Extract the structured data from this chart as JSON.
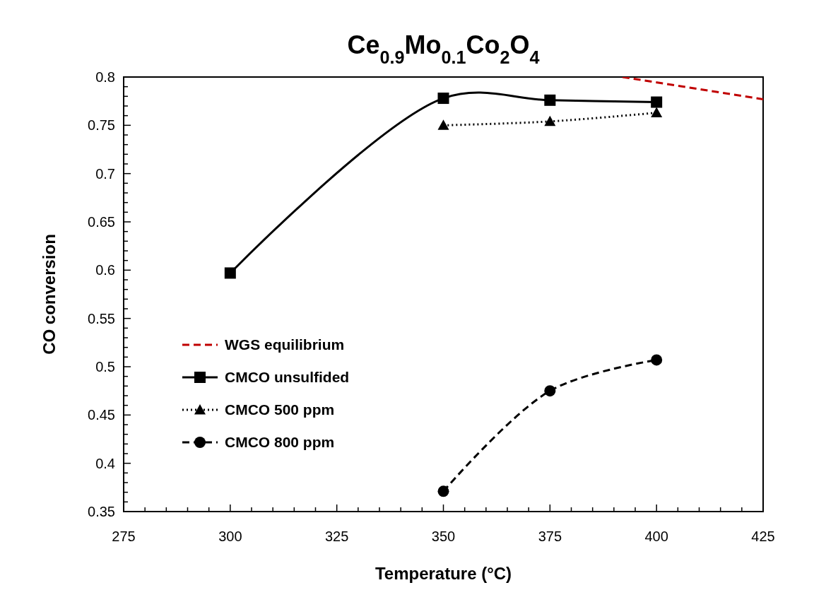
{
  "chart_data": {
    "type": "line",
    "title": "Ce$_{0.9}$Mo$_{0.1}$Co$_{2}$O$_{4}$",
    "xlabel": "Temperature (°C)",
    "ylabel": "CO conversion",
    "xlim": [
      275,
      425
    ],
    "ylim": [
      0.35,
      0.8
    ],
    "xticks": [
      275,
      {
        "value": 280,
        "label": null
      },
      {
        "value": 285,
        "label": null
      },
      {
        "value": 290,
        "label": null
      },
      {
        "value": 295,
        "label": null
      },
      300,
      {
        "value": 305,
        "label": null
      },
      {
        "value": 310,
        "label": null
      },
      {
        "value": 315,
        "label": null
      },
      {
        "value": 320,
        "label": null
      },
      325,
      {
        "value": 330,
        "label": null
      },
      {
        "value": 335,
        "label": null
      },
      {
        "value": 340,
        "label": null
      },
      {
        "value": 345,
        "label": null
      },
      350,
      {
        "value": 355,
        "label": null
      },
      {
        "value": 360,
        "label": null
      },
      {
        "value": 365,
        "label": null
      },
      {
        "value": 370,
        "label": null
      },
      375,
      {
        "value": 380,
        "label": null
      },
      {
        "value": 385,
        "label": null
      },
      {
        "value": 390,
        "label": null
      },
      {
        "value": 395,
        "label": null
      },
      400,
      {
        "value": 405,
        "label": null
      },
      {
        "value": 410,
        "label": null
      },
      {
        "value": 415,
        "label": null
      },
      {
        "value": 420,
        "label": null
      },
      425
    ],
    "yticks": [
      0.35,
      {
        "value": 0.36,
        "label": null
      },
      {
        "value": 0.37,
        "label": null
      },
      {
        "value": 0.38,
        "label": null
      },
      {
        "value": 0.39,
        "label": null
      },
      0.4,
      {
        "value": 0.41,
        "label": null
      },
      {
        "value": 0.42,
        "label": null
      },
      {
        "value": 0.43,
        "label": null
      },
      {
        "value": 0.44,
        "label": null
      },
      0.45,
      {
        "value": 0.46,
        "label": null
      },
      {
        "value": 0.47,
        "label": null
      },
      {
        "value": 0.48,
        "label": null
      },
      {
        "value": 0.49,
        "label": null
      },
      0.5,
      {
        "value": 0.51,
        "label": null
      },
      {
        "value": 0.52,
        "label": null
      },
      {
        "value": 0.53,
        "label": null
      },
      {
        "value": 0.54,
        "label": null
      },
      0.55,
      {
        "value": 0.56,
        "label": null
      },
      {
        "value": 0.57,
        "label": null
      },
      {
        "value": 0.58,
        "label": null
      },
      {
        "value": 0.59,
        "label": null
      },
      0.6,
      {
        "value": 0.61,
        "label": null
      },
      {
        "value": 0.62,
        "label": null
      },
      {
        "value": 0.63,
        "label": null
      },
      {
        "value": 0.64,
        "label": null
      },
      0.65,
      {
        "value": 0.66,
        "label": null
      },
      {
        "value": 0.67,
        "label": null
      },
      {
        "value": 0.68,
        "label": null
      },
      {
        "value": 0.69,
        "label": null
      },
      0.7,
      {
        "value": 0.71,
        "label": null
      },
      {
        "value": 0.72,
        "label": null
      },
      {
        "value": 0.73,
        "label": null
      },
      {
        "value": 0.74,
        "label": null
      },
      0.75,
      {
        "value": 0.76,
        "label": null
      },
      {
        "value": 0.77,
        "label": null
      },
      {
        "value": 0.78,
        "label": null
      },
      {
        "value": 0.79,
        "label": null
      },
      0.8
    ],
    "grid": false,
    "legend": "left",
    "series": [
      {
        "name": "WGS equilibrium",
        "color": "#c00000",
        "x": [
          392,
          425
        ],
        "values": [
          0.8,
          0.777
        ],
        "marker": "none",
        "line_style": "dashed"
      },
      {
        "name": "CMCO unsulfided",
        "color": "#000000",
        "x": [
          300,
          350,
          375,
          400
        ],
        "values": [
          0.597,
          0.778,
          0.776,
          0.774
        ],
        "marker": "square",
        "line_style": "solid"
      },
      {
        "name": "CMCO 500 ppm",
        "color": "#000000",
        "x": [
          350,
          375,
          400
        ],
        "values": [
          0.75,
          0.754,
          0.763
        ],
        "marker": "triangle",
        "line_style": "dotted"
      },
      {
        "name": "CMCO 800 ppm",
        "color": "#000000",
        "x": [
          350,
          375,
          400
        ],
        "values": [
          0.371,
          0.475,
          0.507
        ],
        "marker": "circle",
        "line_style": "dashed"
      }
    ]
  }
}
